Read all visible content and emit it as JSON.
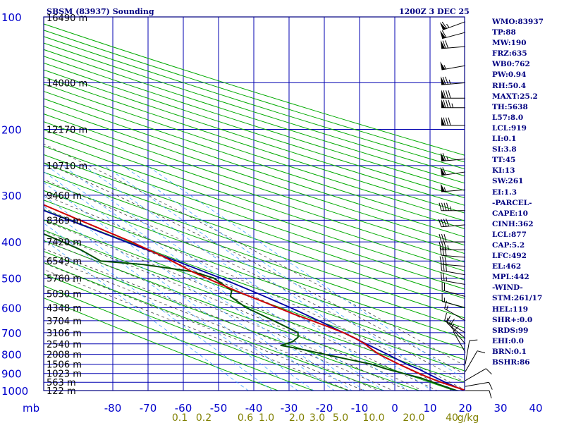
{
  "chart_data": {
    "type": "skew-t sounding",
    "station_title": "SBSM (83937) Sounding",
    "time_label": "1200Z  3 DEC 25",
    "pressure_unit_label": "mb",
    "pressure_ticks": [
      100,
      200,
      300,
      400,
      500,
      600,
      700,
      800,
      900,
      1000
    ],
    "temperature_ticks": [
      -80,
      -70,
      -60,
      -50,
      -40,
      -30,
      -20,
      -10,
      0,
      10,
      20,
      30,
      40
    ],
    "temperature_tick_labels": [
      "-80",
      "-70",
      "-60",
      "-50",
      "-40",
      "-30",
      "-20",
      "-10",
      "0",
      "10",
      "20",
      "30",
      "40"
    ],
    "mixing_ratio_labels": [
      "0.1",
      "0.2",
      "0.6",
      "1.0",
      "2.0",
      "3.0",
      "5.0",
      "10.0",
      "20.0",
      "40",
      "g/kg"
    ],
    "height_labels": [
      {
        "p": 100,
        "label": "16490 m"
      },
      {
        "p": 150,
        "label": "14000 m"
      },
      {
        "p": 200,
        "label": "12170 m"
      },
      {
        "p": 250,
        "label": "10710 m"
      },
      {
        "p": 300,
        "label": "9460 m"
      },
      {
        "p": 350,
        "label": "8369 m"
      },
      {
        "p": 400,
        "label": "7420 m"
      },
      {
        "p": 450,
        "label": "6549 m"
      },
      {
        "p": 500,
        "label": "5760 m"
      },
      {
        "p": 550,
        "label": "5030 m"
      },
      {
        "p": 600,
        "label": "4348 m"
      },
      {
        "p": 650,
        "label": "3704 m"
      },
      {
        "p": 700,
        "label": "3106 m"
      },
      {
        "p": 750,
        "label": "2540 m"
      },
      {
        "p": 800,
        "label": "2008 m"
      },
      {
        "p": 850,
        "label": "1506 m"
      },
      {
        "p": 900,
        "label": "1023 m"
      },
      {
        "p": 950,
        "label": "563 m"
      },
      {
        "p": 1000,
        "label": "122 m"
      }
    ],
    "temperature_profile": [
      [
        1008,
        21.5
      ],
      [
        1000,
        20.2
      ],
      [
        975,
        18.0
      ],
      [
        950,
        15.8
      ],
      [
        925,
        14.0
      ],
      [
        900,
        12.5
      ],
      [
        875,
        11.2
      ],
      [
        850,
        9.8
      ],
      [
        825,
        8.6
      ],
      [
        800,
        7.4
      ],
      [
        775,
        7.0
      ],
      [
        750,
        6.8
      ],
      [
        725,
        6.0
      ],
      [
        700,
        4.4
      ],
      [
        675,
        2.0
      ],
      [
        650,
        -0.6
      ],
      [
        625,
        -3.5
      ],
      [
        600,
        -6.0
      ],
      [
        575,
        -8.6
      ],
      [
        550,
        -11.4
      ],
      [
        525,
        -14.0
      ],
      [
        500,
        -16.5
      ],
      [
        480,
        -18.6
      ],
      [
        460,
        -20.0
      ],
      [
        450,
        -20.8
      ],
      [
        440,
        -21.5
      ],
      [
        400,
        -26.0
      ],
      [
        350,
        -33.5
      ],
      [
        300,
        -42.0
      ],
      [
        280,
        -45.0
      ],
      [
        250,
        -50.5
      ],
      [
        200,
        -58.0
      ],
      [
        175,
        -61.0
      ],
      [
        150,
        -64.5
      ],
      [
        125,
        -68.0
      ],
      [
        115,
        -70.0
      ],
      [
        100,
        -73.0
      ]
    ],
    "dewpoint_profile": [
      [
        1008,
        19.5
      ],
      [
        1000,
        17.5
      ],
      [
        975,
        15.5
      ],
      [
        950,
        13.5
      ],
      [
        925,
        11.5
      ],
      [
        900,
        8.0
      ],
      [
        875,
        4.7
      ],
      [
        850,
        2.0
      ],
      [
        825,
        -3.0
      ],
      [
        800,
        -8.0
      ],
      [
        775,
        -13.0
      ],
      [
        757,
        -17.5
      ],
      [
        740,
        -13.0
      ],
      [
        720,
        -10.0
      ],
      [
        700,
        -8.5
      ],
      [
        650,
        -11.5
      ],
      [
        600,
        -15.0
      ],
      [
        560,
        -15.8
      ],
      [
        540,
        -13.5
      ],
      [
        520,
        -14.0
      ],
      [
        500,
        -14.5
      ],
      [
        480,
        -18.5
      ],
      [
        460,
        -30.0
      ],
      [
        450,
        -41.0
      ],
      [
        420,
        -43.0
      ],
      [
        400,
        -45.5
      ],
      [
        350,
        -53.0
      ],
      [
        300,
        -61.0
      ],
      [
        250,
        -67.5
      ],
      [
        200,
        -73.5
      ],
      [
        175,
        -77.0
      ],
      [
        150,
        -80.0
      ]
    ],
    "parcel_profile": [
      [
        1008,
        21.0
      ],
      [
        1000,
        19.7
      ],
      [
        950,
        17.0
      ],
      [
        900,
        14.8
      ],
      [
        877,
        13.9
      ],
      [
        850,
        12.0
      ],
      [
        800,
        9.8
      ],
      [
        750,
        7.2
      ],
      [
        700,
        4.4
      ],
      [
        650,
        1.3
      ],
      [
        600,
        -2.4
      ],
      [
        550,
        -7.0
      ],
      [
        500,
        -12.5
      ],
      [
        450,
        -19.5
      ],
      [
        400,
        -27.5
      ],
      [
        350,
        -36.5
      ],
      [
        300,
        -47.0
      ],
      [
        250,
        -59.0
      ],
      [
        200,
        -71.0
      ],
      [
        175,
        -78.0
      ]
    ],
    "wind_levels": [
      {
        "p": 103,
        "dir": 250,
        "kt": 65
      },
      {
        "p": 110,
        "dir": 255,
        "kt": 60
      },
      {
        "p": 120,
        "dir": 265,
        "kt": 70
      },
      {
        "p": 135,
        "dir": 260,
        "kt": 55
      },
      {
        "p": 150,
        "dir": 265,
        "kt": 75
      },
      {
        "p": 165,
        "dir": 270,
        "kt": 80
      },
      {
        "p": 175,
        "dir": 270,
        "kt": 85
      },
      {
        "p": 195,
        "dir": 270,
        "kt": 80
      },
      {
        "p": 240,
        "dir": 265,
        "kt": 65
      },
      {
        "p": 260,
        "dir": 262,
        "kt": 60
      },
      {
        "p": 290,
        "dir": 265,
        "kt": 55
      },
      {
        "p": 330,
        "dir": 270,
        "kt": 45
      },
      {
        "p": 360,
        "dir": 265,
        "kt": 40
      },
      {
        "p": 400,
        "dir": 270,
        "kt": 30
      },
      {
        "p": 420,
        "dir": 270,
        "kt": 35
      },
      {
        "p": 440,
        "dir": 275,
        "kt": 30
      },
      {
        "p": 465,
        "dir": 275,
        "kt": 30
      },
      {
        "p": 490,
        "dir": 280,
        "kt": 30
      },
      {
        "p": 520,
        "dir": 280,
        "kt": 25
      },
      {
        "p": 560,
        "dir": 285,
        "kt": 20
      },
      {
        "p": 600,
        "dir": 285,
        "kt": 15
      },
      {
        "p": 650,
        "dir": 300,
        "kt": 15
      },
      {
        "p": 700,
        "dir": 300,
        "kt": 15
      },
      {
        "p": 725,
        "dir": 310,
        "kt": 15
      },
      {
        "p": 750,
        "dir": 320,
        "kt": 15
      },
      {
        "p": 790,
        "dir": 330,
        "kt": 10
      },
      {
        "p": 850,
        "dir": 10,
        "kt": 10
      },
      {
        "p": 890,
        "dir": 30,
        "kt": 10
      },
      {
        "p": 940,
        "dir": 60,
        "kt": 10
      },
      {
        "p": 975,
        "dir": 80,
        "kt": 10
      },
      {
        "p": 1000,
        "dir": 90,
        "kt": 10
      }
    ],
    "indices": [
      "WMO:83937",
      "TP:88",
      "MW:190",
      "FRZ:635",
      "WB0:762",
      "PW:0.94",
      "RH:50.4",
      "MAXT:25.2",
      "TH:5638",
      "L57:8.0",
      "LCL:919",
      "LI:0.1",
      "SI:3.8",
      "TT:45",
      "KI:13",
      "SW:261",
      "EI:1.3",
      "-PARCEL-",
      "CAPE:10",
      "CINH:362",
      "LCL:877",
      "CAP:5.2",
      "LFC:492",
      "EL:462",
      "MPL:442",
      "-WIND-",
      "STM:261/17",
      "HEL:119",
      "SHR+:0.0",
      "SRDS:99",
      "EHI:0.0",
      "BRN:0.1",
      "BSHR:86"
    ],
    "colors": {
      "frame": "#000080",
      "grid": "#0000b0",
      "dry_adiabat": "#00aa00",
      "moist_adiabat": "#404040",
      "mixing_ratio": "#40a0ff",
      "temperature": "#cc0000",
      "dewpoint": "#005000",
      "parcel": "#0000a0",
      "wind": "#000000",
      "labels": "#000080",
      "mixing_ratio_labels": "#808000"
    }
  }
}
